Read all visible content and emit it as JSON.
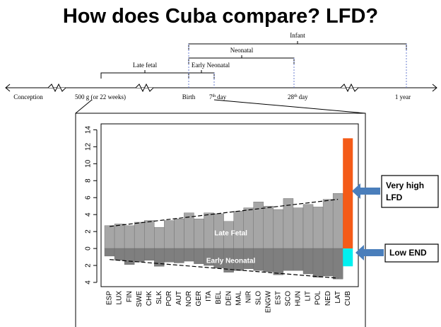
{
  "title": "How does Cuba compare? LFD?",
  "timeline": {
    "points": [
      {
        "label": "Conception"
      },
      {
        "label": "500 g (or 22 weeks)"
      },
      {
        "label": "Birth"
      },
      {
        "number": "7",
        "suffix": "th",
        "word": "day"
      },
      {
        "number": "28",
        "suffix": "th",
        "word": "day"
      },
      {
        "label": "1 year"
      }
    ],
    "periods": [
      "Late fetal",
      "Early Neonatal",
      "Neonatal",
      "Infant"
    ]
  },
  "chart_data": {
    "type": "bar",
    "categories": [
      "ESP",
      "LUX",
      "FIN",
      "SWE",
      "CHK",
      "SLK",
      "POR",
      "AUT",
      "NOR",
      "GER",
      "ITA",
      "BEL",
      "DEN",
      "MAL",
      "NIR",
      "SLO",
      "ENGW",
      "EST",
      "SCO",
      "HUN",
      "LIT",
      "POL",
      "NED",
      "LAT",
      "CUB"
    ],
    "series": [
      {
        "name": "Late Fetal",
        "color": "#a6a6a6",
        "highlight_color": "#f45b18",
        "values": [
          2.7,
          2.9,
          2.7,
          3.1,
          3.3,
          2.5,
          3.3,
          3.5,
          4.2,
          3.5,
          4.2,
          4.1,
          3.2,
          4.4,
          4.8,
          5.5,
          5.0,
          4.6,
          5.9,
          4.8,
          5.2,
          4.9,
          5.8,
          6.5,
          13.0
        ],
        "trend": [
          2.6,
          5.8
        ]
      },
      {
        "name": "Early Neonatal",
        "color": "#7f7f7f",
        "highlight_color": "#00f0f0",
        "values": [
          -0.9,
          -1.4,
          -1.9,
          -1.6,
          -1.4,
          -2.1,
          -1.6,
          -1.7,
          -1.5,
          -1.8,
          -2.0,
          -2.3,
          -2.8,
          -2.6,
          -2.4,
          -2.6,
          -2.75,
          -3.1,
          -2.6,
          -2.6,
          -3.0,
          -3.4,
          -3.25,
          -3.6,
          -2.1
        ],
        "trend": [
          -1.3,
          -3.5
        ]
      }
    ],
    "highlight_index": 24,
    "ylim": [
      -4.5,
      14.7
    ],
    "yticks": [
      {
        "value": -4,
        "label": "4"
      },
      {
        "value": -2,
        "label": "2"
      },
      0,
      2,
      4,
      6,
      8,
      10,
      12,
      14
    ],
    "annotations": [
      "Very high LFD",
      "Low END"
    ],
    "annotation_color": "#4a7ebb"
  }
}
